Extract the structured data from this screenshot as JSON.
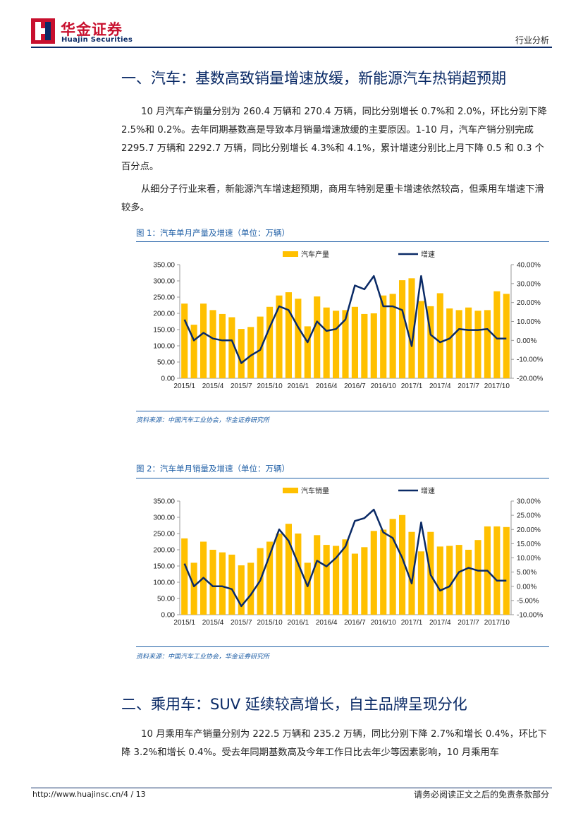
{
  "header": {
    "logo_cn": "华金证券",
    "logo_en": "Huajin Securities",
    "report_type": "行业分析"
  },
  "section1": {
    "title": "一、汽车：基数高致销量增速放缓，新能源汽车热销超预期",
    "para1": "10 月汽车产销量分别为 260.4 万辆和 270.4 万辆，同比分别增长 0.7%和 2.0%，环比分别下降 2.5%和 0.2%。去年同期基数高是导致本月销量增速放缓的主要原因。1-10 月，汽车产销分别完成 2295.7 万辆和 2292.7 万辆，同比分别增长 4.3%和 4.1%，累计增速分别比上月下降 0.5 和 0.3 个百分点。",
    "para2": "从细分子行业来看，新能源汽车增速超预期，商用车特别是重卡增速依然较高，但乘用车增速下滑较多。"
  },
  "figure1": {
    "caption": "图 1：汽车单月产量及增速（单位：万辆）",
    "source": "资料来源：中国汽车工业协会，华金证券研究所"
  },
  "figure2": {
    "caption": "图 2：汽车单月销量及增速（单位：万辆）",
    "source": "资料来源：中国汽车工业协会，华金证券研究所"
  },
  "section2": {
    "title": "二、乘用车：SUV 延续较高增长，自主品牌呈现分化",
    "para1": "10 月乘用车产销量分别为 222.5 万辆和 235.2 万辆，同比分别下降 2.7%和增长 0.4%，环比下降 3.2%和增长 0.4%。受去年同期基数高及今年工作日比去年少等因素影响，10 月乘用车"
  },
  "footer": {
    "url": "http://www.huajinsc.cn/",
    "page": "4 / 13",
    "disclaimer": "请务必阅读正文之后的免责条款部分"
  },
  "colors": {
    "bar": "#FFC000",
    "line": "#0A2A66",
    "title": "#0A2A66",
    "caption": "#1F5FA6",
    "logo_red": "#C8102E"
  },
  "chart_data": [
    {
      "type": "bar+line",
      "series": [
        {
          "name": "汽车产量",
          "type": "bar",
          "axis": "left",
          "values": [
            230,
            165,
            230,
            210,
            198,
            188,
            152,
            158,
            190,
            220,
            255,
            265,
            245,
            160,
            252,
            218,
            208,
            210,
            220,
            198,
            200,
            255,
            260,
            302,
            308,
            238,
            222,
            262,
            215,
            210,
            218,
            208,
            210,
            268,
            260
          ]
        },
        {
          "name": "增速",
          "type": "line",
          "axis": "right",
          "values": [
            0.11,
            0.0,
            0.04,
            0.01,
            0.0,
            0.0,
            -0.12,
            -0.08,
            -0.05,
            0.07,
            0.18,
            0.16,
            0.07,
            -0.01,
            0.1,
            0.05,
            0.06,
            0.11,
            0.29,
            0.27,
            0.34,
            0.18,
            0.18,
            0.16,
            -0.03,
            0.34,
            0.03,
            -0.01,
            0.01,
            0.06,
            0.055,
            0.055,
            0.06,
            0.01,
            0.01
          ]
        }
      ],
      "x_tick_labels": [
        "2015/1",
        "2015/4",
        "2015/7",
        "2015/10",
        "2016/1",
        "2016/4",
        "2016/7",
        "2016/10",
        "2017/1",
        "2017/4",
        "2017/7",
        "2017/10"
      ],
      "y_left_ticks": [
        "0.00",
        "50.00",
        "100.00",
        "150.00",
        "200.00",
        "250.00",
        "300.00",
        "350.00"
      ],
      "y_right_ticks": [
        "-20.00%",
        "-10.00%",
        "0.00%",
        "10.00%",
        "20.00%",
        "30.00%",
        "40.00%"
      ],
      "y_left_range": [
        0,
        350
      ],
      "y_right_range": [
        -0.2,
        0.4
      ],
      "legend_position": "top"
    },
    {
      "type": "bar+line",
      "series": [
        {
          "name": "汽车销量",
          "type": "bar",
          "axis": "left",
          "values": [
            235,
            160,
            225,
            200,
            192,
            185,
            152,
            160,
            205,
            225,
            250,
            280,
            250,
            160,
            245,
            215,
            212,
            232,
            188,
            208,
            258,
            262,
            295,
            307,
            255,
            195,
            255,
            210,
            212,
            215,
            200,
            230,
            272,
            272,
            270
          ]
        },
        {
          "name": "增速",
          "type": "line",
          "axis": "right",
          "values": [
            0.08,
            0.0,
            0.03,
            0.0,
            0.0,
            -0.01,
            -0.07,
            -0.03,
            0.02,
            0.11,
            0.2,
            0.16,
            0.08,
            0.0,
            0.09,
            0.07,
            0.1,
            0.14,
            0.23,
            0.24,
            0.27,
            0.19,
            0.17,
            0.1,
            0.01,
            0.225,
            0.04,
            -0.015,
            0.0,
            0.05,
            0.065,
            0.055,
            0.055,
            0.02,
            0.02
          ]
        }
      ],
      "x_tick_labels": [
        "2015/1",
        "2015/4",
        "2015/7",
        "2015/10",
        "2016/1",
        "2016/4",
        "2016/7",
        "2016/10",
        "2017/1",
        "2017/4",
        "2017/7",
        "2017/10"
      ],
      "y_left_ticks": [
        "0.00",
        "50.00",
        "100.00",
        "150.00",
        "200.00",
        "250.00",
        "300.00",
        "350.00"
      ],
      "y_right_ticks": [
        "-10.00%",
        "-5.00%",
        "0.00%",
        "5.00%",
        "10.00%",
        "15.00%",
        "20.00%",
        "25.00%",
        "30.00%"
      ],
      "y_left_range": [
        0,
        350
      ],
      "y_right_range": [
        -0.1,
        0.3
      ],
      "legend_position": "top"
    }
  ]
}
